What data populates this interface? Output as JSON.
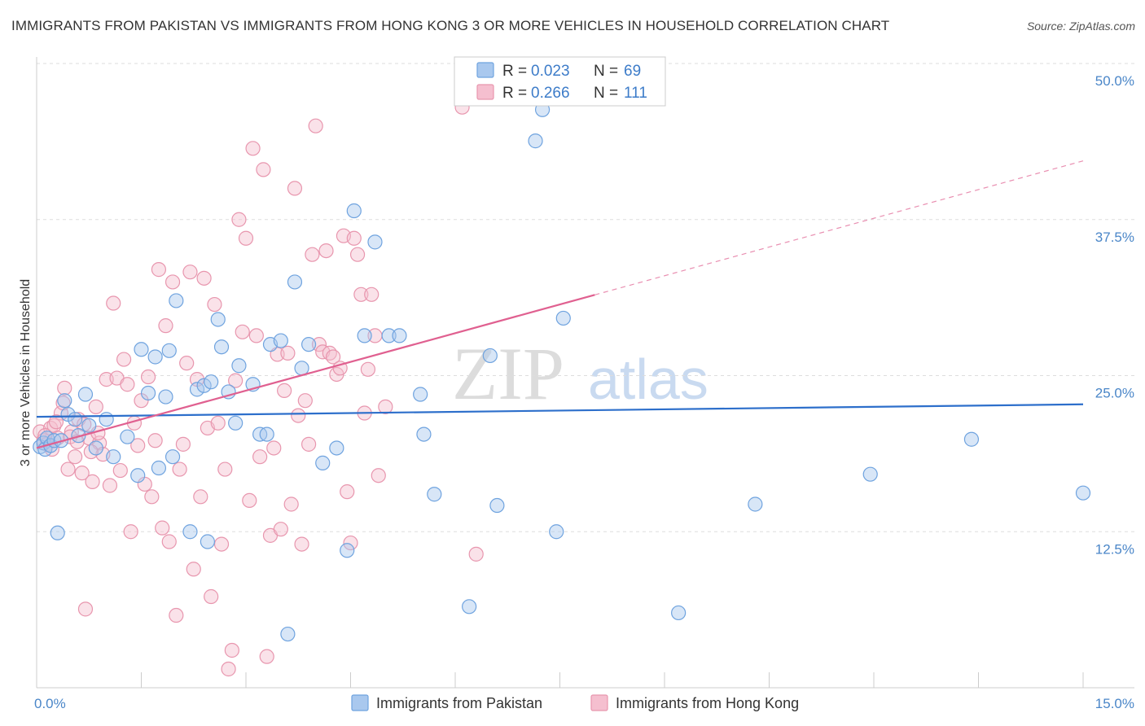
{
  "title": "IMMIGRANTS FROM PAKISTAN VS IMMIGRANTS FROM HONG KONG 3 OR MORE VEHICLES IN HOUSEHOLD CORRELATION CHART",
  "source": "Source: ZipAtlas.com",
  "watermark": {
    "zip": "ZIP",
    "atlas": "atlas"
  },
  "chart_data": {
    "type": "scatter",
    "title": "IMMIGRANTS FROM PAKISTAN VS IMMIGRANTS FROM HONG KONG 3 OR MORE VEHICLES IN HOUSEHOLD CORRELATION CHART",
    "xlabel": "",
    "ylabel": "3 or more Vehicles in Household",
    "xlim": [
      0,
      15
    ],
    "ylim": [
      0,
      50
    ],
    "x_tick_labels": [
      "0.0%",
      "15.0%"
    ],
    "y_ticks": [
      12.5,
      25.0,
      37.5,
      50.0
    ],
    "y_tick_labels": [
      "12.5%",
      "25.0%",
      "37.5%",
      "50.0%"
    ],
    "grid": true,
    "legend_top": [
      {
        "r_label": "R =",
        "r_value": "0.023",
        "n_label": "N =",
        "n_value": "69"
      },
      {
        "r_label": "R =",
        "r_value": "0.266",
        "n_label": "N =",
        "n_value": "111"
      }
    ],
    "series": [
      {
        "name": "Immigrants from Pakistan",
        "color": "#6fa3df",
        "fill": "#a9c8ee",
        "trend": {
          "x": [
            0,
            15
          ],
          "y": [
            21.7,
            22.7
          ],
          "solid_to": 15,
          "color": "#2d6fcb"
        },
        "points": [
          [
            0.05,
            19.3
          ],
          [
            0.1,
            19.6
          ],
          [
            0.12,
            19.1
          ],
          [
            0.15,
            20.0
          ],
          [
            0.2,
            19.4
          ],
          [
            0.25,
            19.8
          ],
          [
            0.3,
            12.4
          ],
          [
            0.4,
            23.0
          ],
          [
            0.45,
            21.9
          ],
          [
            0.55,
            21.5
          ],
          [
            0.6,
            20.2
          ],
          [
            0.7,
            23.5
          ],
          [
            0.75,
            21.0
          ],
          [
            0.85,
            19.2
          ],
          [
            1.0,
            21.5
          ],
          [
            1.1,
            18.5
          ],
          [
            1.3,
            20.1
          ],
          [
            1.45,
            17.0
          ],
          [
            1.5,
            27.1
          ],
          [
            1.6,
            23.6
          ],
          [
            1.7,
            26.5
          ],
          [
            1.75,
            17.6
          ],
          [
            1.85,
            23.3
          ],
          [
            1.9,
            27.0
          ],
          [
            1.95,
            18.5
          ],
          [
            2.0,
            31.0
          ],
          [
            2.2,
            12.5
          ],
          [
            2.3,
            23.9
          ],
          [
            2.4,
            24.2
          ],
          [
            2.45,
            11.7
          ],
          [
            2.5,
            24.5
          ],
          [
            2.6,
            29.5
          ],
          [
            2.65,
            27.3
          ],
          [
            2.75,
            23.7
          ],
          [
            2.85,
            21.2
          ],
          [
            2.9,
            25.8
          ],
          [
            3.1,
            24.3
          ],
          [
            3.2,
            20.3
          ],
          [
            3.3,
            20.3
          ],
          [
            3.35,
            27.5
          ],
          [
            3.5,
            27.8
          ],
          [
            3.6,
            4.3
          ],
          [
            3.7,
            32.5
          ],
          [
            3.8,
            25.6
          ],
          [
            3.9,
            27.5
          ],
          [
            4.1,
            18.0
          ],
          [
            4.3,
            19.2
          ],
          [
            4.45,
            11.0
          ],
          [
            4.55,
            38.2
          ],
          [
            4.7,
            28.2
          ],
          [
            4.85,
            35.7
          ],
          [
            5.05,
            28.2
          ],
          [
            5.2,
            28.2
          ],
          [
            5.5,
            23.5
          ],
          [
            5.55,
            20.3
          ],
          [
            5.7,
            15.5
          ],
          [
            6.2,
            6.5
          ],
          [
            6.5,
            26.6
          ],
          [
            6.6,
            14.6
          ],
          [
            7.15,
            43.8
          ],
          [
            7.25,
            46.3
          ],
          [
            7.45,
            12.5
          ],
          [
            7.55,
            29.6
          ],
          [
            9.2,
            6.0
          ],
          [
            10.3,
            14.7
          ],
          [
            11.95,
            17.1
          ],
          [
            13.4,
            19.9
          ],
          [
            15.0,
            15.6
          ],
          [
            0.35,
            19.8
          ]
        ]
      },
      {
        "name": "Immigrants from Hong Kong",
        "color": "#e896ae",
        "fill": "#f5bfcf",
        "trend": {
          "x": [
            0,
            15
          ],
          "y": [
            19.2,
            42.2
          ],
          "solid_to": 8.0,
          "color": "#e06090"
        },
        "points": [
          [
            0.05,
            20.5
          ],
          [
            0.1,
            19.8
          ],
          [
            0.15,
            19.5
          ],
          [
            0.2,
            20.8
          ],
          [
            0.25,
            21.0
          ],
          [
            0.3,
            20.0
          ],
          [
            0.35,
            22.0
          ],
          [
            0.4,
            24.0
          ],
          [
            0.45,
            17.5
          ],
          [
            0.5,
            20.5
          ],
          [
            0.55,
            18.5
          ],
          [
            0.6,
            21.5
          ],
          [
            0.65,
            17.2
          ],
          [
            0.7,
            6.3
          ],
          [
            0.75,
            20.0
          ],
          [
            0.8,
            16.5
          ],
          [
            0.85,
            22.5
          ],
          [
            0.9,
            19.6
          ],
          [
            0.95,
            18.7
          ],
          [
            1.0,
            24.7
          ],
          [
            1.05,
            16.2
          ],
          [
            1.1,
            30.8
          ],
          [
            1.15,
            24.8
          ],
          [
            1.2,
            17.4
          ],
          [
            1.25,
            26.3
          ],
          [
            1.3,
            24.3
          ],
          [
            1.35,
            12.5
          ],
          [
            1.4,
            21.2
          ],
          [
            1.45,
            19.4
          ],
          [
            1.5,
            23.0
          ],
          [
            1.55,
            16.3
          ],
          [
            1.6,
            24.9
          ],
          [
            1.65,
            15.3
          ],
          [
            1.7,
            19.8
          ],
          [
            1.75,
            33.5
          ],
          [
            1.8,
            12.8
          ],
          [
            1.85,
            29.0
          ],
          [
            1.9,
            11.7
          ],
          [
            1.95,
            32.5
          ],
          [
            2.0,
            5.8
          ],
          [
            2.05,
            17.5
          ],
          [
            2.1,
            19.5
          ],
          [
            2.15,
            26.0
          ],
          [
            2.2,
            33.3
          ],
          [
            2.25,
            9.5
          ],
          [
            2.3,
            24.7
          ],
          [
            2.35,
            15.3
          ],
          [
            2.4,
            32.8
          ],
          [
            2.45,
            20.8
          ],
          [
            2.5,
            7.3
          ],
          [
            2.55,
            30.7
          ],
          [
            2.6,
            21.2
          ],
          [
            2.65,
            11.5
          ],
          [
            2.7,
            17.5
          ],
          [
            2.75,
            1.5
          ],
          [
            2.8,
            3.0
          ],
          [
            2.85,
            24.6
          ],
          [
            2.9,
            37.5
          ],
          [
            2.95,
            28.5
          ],
          [
            3.0,
            36.0
          ],
          [
            3.05,
            15.0
          ],
          [
            3.1,
            43.2
          ],
          [
            3.15,
            28.2
          ],
          [
            3.2,
            18.5
          ],
          [
            3.25,
            41.5
          ],
          [
            3.3,
            2.5
          ],
          [
            3.35,
            12.2
          ],
          [
            3.4,
            19.2
          ],
          [
            3.45,
            26.7
          ],
          [
            3.5,
            12.7
          ],
          [
            3.55,
            23.8
          ],
          [
            3.6,
            26.8
          ],
          [
            3.65,
            14.7
          ],
          [
            3.7,
            40.0
          ],
          [
            3.75,
            21.8
          ],
          [
            3.8,
            11.5
          ],
          [
            3.85,
            23.0
          ],
          [
            3.9,
            19.5
          ],
          [
            3.95,
            34.7
          ],
          [
            4.0,
            45.0
          ],
          [
            4.05,
            27.5
          ],
          [
            4.1,
            26.9
          ],
          [
            4.15,
            35.0
          ],
          [
            4.2,
            26.8
          ],
          [
            4.25,
            26.5
          ],
          [
            4.3,
            25.1
          ],
          [
            4.35,
            25.6
          ],
          [
            4.4,
            36.2
          ],
          [
            4.45,
            15.7
          ],
          [
            4.5,
            11.6
          ],
          [
            4.55,
            36.0
          ],
          [
            4.6,
            34.7
          ],
          [
            4.65,
            31.5
          ],
          [
            4.7,
            22.0
          ],
          [
            4.75,
            25.5
          ],
          [
            4.8,
            31.5
          ],
          [
            4.85,
            28.2
          ],
          [
            4.9,
            17.0
          ],
          [
            5.0,
            22.5
          ],
          [
            6.1,
            46.5
          ],
          [
            6.3,
            10.7
          ],
          [
            0.12,
            20.2
          ],
          [
            0.22,
            19.1
          ],
          [
            0.28,
            21.3
          ],
          [
            0.38,
            22.8
          ],
          [
            0.48,
            20.1
          ],
          [
            0.58,
            19.7
          ],
          [
            0.68,
            21.1
          ],
          [
            0.78,
            18.9
          ],
          [
            0.88,
            20.4
          ]
        ]
      }
    ]
  },
  "legend_bottom": [
    {
      "label": "Immigrants from Pakistan"
    },
    {
      "label": "Immigrants from Hong Kong"
    }
  ]
}
